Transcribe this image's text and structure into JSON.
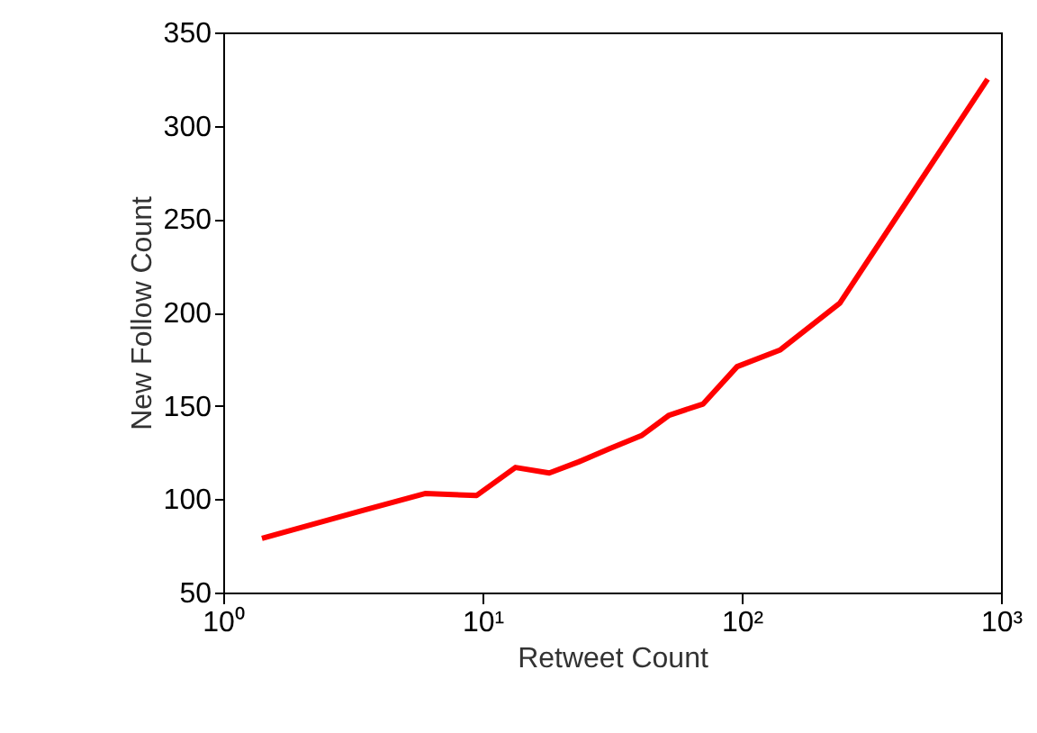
{
  "chart_data": {
    "type": "line",
    "xlabel": "Retweet Count",
    "ylabel": "New Follow Count",
    "log": "x",
    "x": [
      1.41,
      3.45,
      6.0,
      9.5,
      13.4,
      18.1,
      23.5,
      30.9,
      41,
      52.5,
      71,
      96,
      141,
      239,
      888
    ],
    "series": [
      {
        "color": "#ff0000",
        "values": [
          79,
          94,
          103,
          102,
          117,
          114,
          120,
          127,
          134,
          145,
          151,
          171,
          180,
          205,
          325
        ]
      }
    ],
    "xlim": [
      1,
      1000
    ],
    "xticks": [
      {
        "value": 1,
        "label": "10⁰"
      },
      {
        "value": 10,
        "label": "10¹"
      },
      {
        "value": 100,
        "label": "10²"
      },
      {
        "value": 1000,
        "label": "10³"
      }
    ],
    "ylim": [
      50,
      350
    ],
    "yticks": [
      50,
      100,
      150,
      200,
      250,
      300,
      350
    ],
    "grid": false,
    "marker": "none",
    "line_style": "solid"
  }
}
